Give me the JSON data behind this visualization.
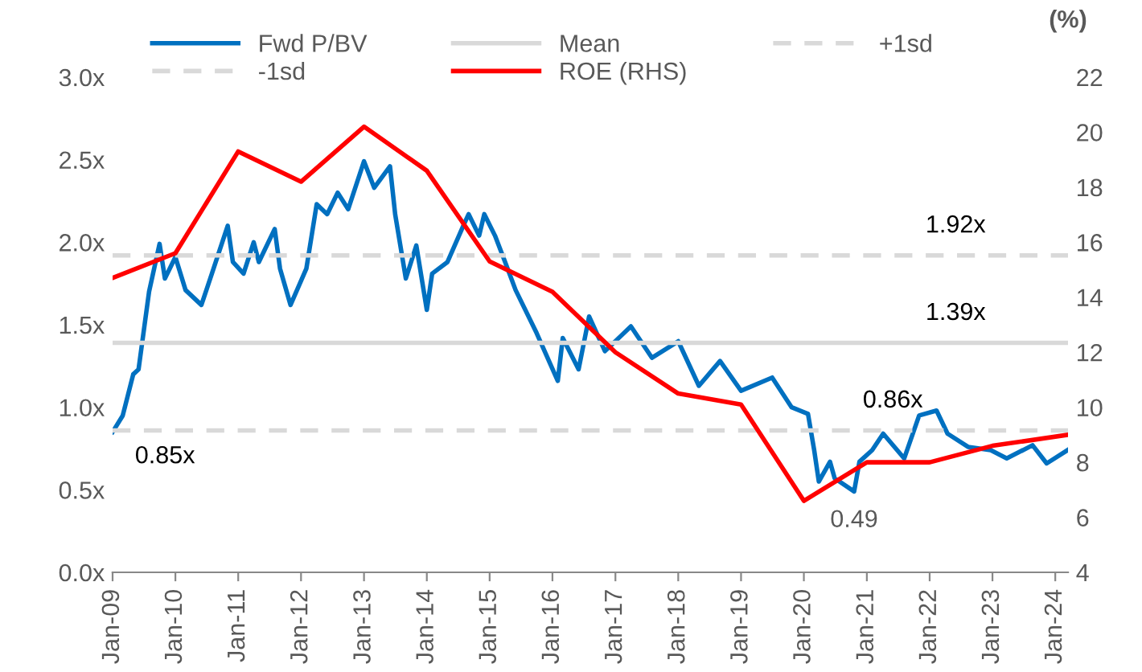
{
  "chart_data": {
    "type": "line",
    "xlim": [
      "2009-01-01",
      "2024-03-15"
    ],
    "xticks": [
      {
        "value": "2009-01-01",
        "label": "Jan-09"
      },
      {
        "value": "2010-01-01",
        "label": "Jan-10"
      },
      {
        "value": "2011-01-01",
        "label": "Jan-11"
      },
      {
        "value": "2012-01-01",
        "label": "Jan-12"
      },
      {
        "value": "2013-01-01",
        "label": "Jan-13"
      },
      {
        "value": "2014-01-01",
        "label": "Jan-14"
      },
      {
        "value": "2015-01-01",
        "label": "Jan-15"
      },
      {
        "value": "2016-01-01",
        "label": "Jan-16"
      },
      {
        "value": "2017-01-01",
        "label": "Jan-17"
      },
      {
        "value": "2018-01-01",
        "label": "Jan-18"
      },
      {
        "value": "2019-01-01",
        "label": "Jan-19"
      },
      {
        "value": "2020-01-01",
        "label": "Jan-20"
      },
      {
        "value": "2021-01-01",
        "label": "Jan-21"
      },
      {
        "value": "2022-01-01",
        "label": "Jan-22"
      },
      {
        "value": "2023-01-01",
        "label": "Jan-23"
      },
      {
        "value": "2024-01-01",
        "label": "Jan-24"
      }
    ],
    "ylim": [
      0,
      3
    ],
    "yticks": [
      {
        "value": 0,
        "label": "0.0x"
      },
      {
        "value": 0.5,
        "label": "0.5x"
      },
      {
        "value": 1,
        "label": "1.0x"
      },
      {
        "value": 1.5,
        "label": "1.5x"
      },
      {
        "value": 2,
        "label": "2.0x"
      },
      {
        "value": 2.5,
        "label": "2.5x"
      },
      {
        "value": 3,
        "label": "3.0x"
      }
    ],
    "y2lim": [
      4,
      22
    ],
    "y2ticks": [
      4,
      6,
      8,
      10,
      12,
      14,
      16,
      18,
      20,
      22
    ],
    "y2label": "(%)",
    "grid": false,
    "legend": "top",
    "series": [
      {
        "name": "Fwd P/BV",
        "color": "#0070c0",
        "line_style": "solid",
        "x": [
          "2009-01-01",
          "2009-03-01",
          "2009-05-01",
          "2009-06-01",
          "2009-08-01",
          "2009-10-01",
          "2009-11-01",
          "2010-01-01",
          "2010-03-01",
          "2010-06-01",
          "2010-08-01",
          "2010-11-01",
          "2010-12-01",
          "2011-02-01",
          "2011-04-01",
          "2011-05-01",
          "2011-08-01",
          "2011-09-01",
          "2011-11-01",
          "2012-02-01",
          "2012-04-01",
          "2012-06-01",
          "2012-08-01",
          "2012-10-01",
          "2013-01-01",
          "2013-03-01",
          "2013-06-01",
          "2013-07-01",
          "2013-09-01",
          "2013-11-01",
          "2014-01-01",
          "2014-02-01",
          "2014-05-01",
          "2014-08-01",
          "2014-09-01",
          "2014-11-01",
          "2014-12-01",
          "2015-02-01",
          "2015-04-01",
          "2015-06-01",
          "2015-10-01",
          "2016-02-01",
          "2016-03-01",
          "2016-06-01",
          "2016-08-01",
          "2016-11-01",
          "2017-04-01",
          "2017-08-01",
          "2018-01-01",
          "2018-05-01",
          "2018-09-01",
          "2019-01-01",
          "2019-07-01",
          "2019-10-22",
          "2020-01-25",
          "2020-03-01",
          "2020-03-28",
          "2020-06-01",
          "2020-06-28",
          "2020-10-19",
          "2020-11-19",
          "2021-02-01",
          "2021-04-06",
          "2021-08-06",
          "2021-11-01",
          "2022-02-10",
          "2022-04-15",
          "2022-08-12",
          "2022-12-22",
          "2023-03-25",
          "2023-08-22",
          "2023-11-12",
          "2024-03-12"
        ],
        "values": [
          0.85,
          0.95,
          1.2,
          1.23,
          1.7,
          1.99,
          1.78,
          1.91,
          1.71,
          1.62,
          1.81,
          2.1,
          1.88,
          1.81,
          2.0,
          1.88,
          2.08,
          1.84,
          1.62,
          1.84,
          2.23,
          2.17,
          2.3,
          2.2,
          2.49,
          2.33,
          2.46,
          2.17,
          1.78,
          1.98,
          1.59,
          1.81,
          1.88,
          2.1,
          2.17,
          2.04,
          2.17,
          2.04,
          1.88,
          1.71,
          1.45,
          1.16,
          1.42,
          1.23,
          1.55,
          1.34,
          1.49,
          1.3,
          1.4,
          1.13,
          1.28,
          1.1,
          1.18,
          1.0,
          0.96,
          0.74,
          0.55,
          0.67,
          0.57,
          0.49,
          0.67,
          0.74,
          0.84,
          0.69,
          0.95,
          0.98,
          0.84,
          0.76,
          0.74,
          0.69,
          0.77,
          0.66,
          0.74
        ]
      },
      {
        "name": "Mean",
        "color": "#d9d9d9",
        "line_style": "solid",
        "x": [
          "2009-01-01",
          "2024-03-15"
        ],
        "values": [
          1.39,
          1.39
        ]
      },
      {
        "name": "+1sd",
        "color": "#d9d9d9",
        "line_style": "dashed",
        "x": [
          "2009-01-01",
          "2024-03-15"
        ],
        "values": [
          1.92,
          1.92
        ]
      },
      {
        "name": "-1sd",
        "color": "#d9d9d9",
        "line_style": "dashed",
        "x": [
          "2009-01-01",
          "2024-03-15"
        ],
        "values": [
          0.86,
          0.86
        ]
      },
      {
        "name": "ROE (RHS)",
        "color": "#ff0000",
        "line_style": "solid",
        "axis": "y2",
        "x": [
          "2009-01-01",
          "2010-01-01",
          "2011-01-01",
          "2012-01-01",
          "2013-01-01",
          "2014-01-01",
          "2015-01-01",
          "2016-01-01",
          "2017-01-01",
          "2018-01-01",
          "2019-01-01",
          "2020-01-01",
          "2021-01-01",
          "2022-01-01",
          "2023-01-01",
          "2024-03-15"
        ],
        "values": [
          14.7,
          15.6,
          19.3,
          18.2,
          20.2,
          18.6,
          15.3,
          14.2,
          12.0,
          10.5,
          10.1,
          6.6,
          8.0,
          8.0,
          8.6,
          9.0
        ]
      }
    ],
    "annotations": [
      {
        "text": "1.92x",
        "x": "2022-06-01",
        "y": 1.92
      },
      {
        "text": "1.39x",
        "x": "2022-06-01",
        "y": 1.39
      },
      {
        "text": "0.86x",
        "x": "2021-06-01",
        "y": 0.86
      },
      {
        "text": "0.85x",
        "x": "2009-01-01",
        "y": 0.85
      },
      {
        "text": "0.49",
        "x": "2020-10-19",
        "y": 0.49
      }
    ]
  }
}
